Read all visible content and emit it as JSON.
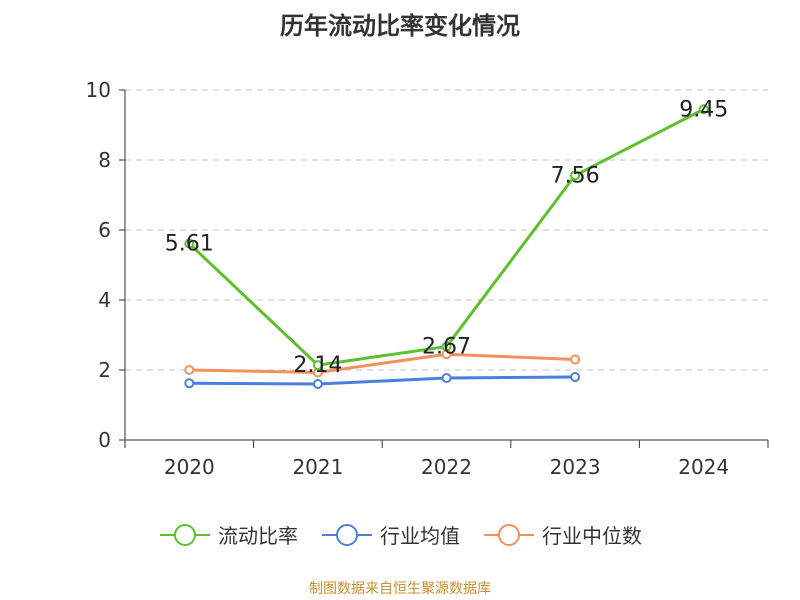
{
  "chart_data": {
    "type": "line",
    "title": "历年流动比率变化情况",
    "categories": [
      "2020",
      "2021",
      "2022",
      "2023",
      "2024"
    ],
    "ylim": [
      0,
      10
    ],
    "yticks": [
      0,
      2,
      4,
      6,
      8,
      10
    ],
    "grid": true,
    "legend_position": "bottom",
    "series": [
      {
        "name": "流动比率",
        "color": "#5cc12c",
        "values": [
          5.61,
          2.14,
          2.67,
          7.56,
          9.45
        ],
        "labels": [
          "5.61",
          "2.14",
          "2.67",
          "7.56",
          "9.45"
        ]
      },
      {
        "name": "行业均值",
        "color": "#4a7fdb",
        "values": [
          1.62,
          1.6,
          1.77,
          1.8,
          null
        ]
      },
      {
        "name": "行业中位数",
        "color": "#f4905a",
        "values": [
          2.0,
          1.93,
          2.45,
          2.3,
          null
        ]
      }
    ]
  },
  "footer": "制图数据来自恒生聚源数据库"
}
